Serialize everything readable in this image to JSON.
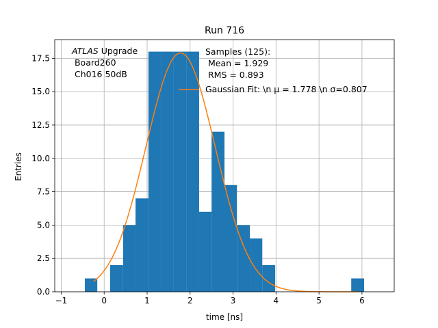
{
  "chart_data": {
    "type": "bar",
    "title": "Run 716",
    "xlabel": "time [ns]",
    "ylabel": "Entries",
    "xlim": [
      -1.15,
      6.75
    ],
    "ylim": [
      0,
      18.9
    ],
    "grid": true,
    "x_ticks": [
      -1,
      0,
      1,
      2,
      3,
      4,
      5,
      6
    ],
    "x_tick_labels": [
      "−1",
      "0",
      "1",
      "2",
      "3",
      "4",
      "5",
      "6"
    ],
    "y_ticks": [
      0,
      2.5,
      5,
      7.5,
      10,
      12.5,
      15,
      17.5
    ],
    "y_tick_labels": [
      "0.0",
      "2.5",
      "5.0",
      "7.5",
      "10.0",
      "12.5",
      "15.0",
      "17.5"
    ],
    "bins": [
      {
        "x0": -0.45,
        "x1": -0.16,
        "count": 1
      },
      {
        "x0": 0.14,
        "x1": 0.44,
        "count": 2
      },
      {
        "x0": 0.44,
        "x1": 0.73,
        "count": 5
      },
      {
        "x0": 0.73,
        "x1": 1.03,
        "count": 7
      },
      {
        "x0": 1.03,
        "x1": 1.32,
        "count": 18
      },
      {
        "x0": 1.32,
        "x1": 1.62,
        "count": 18
      },
      {
        "x0": 1.62,
        "x1": 1.91,
        "count": 18
      },
      {
        "x0": 1.91,
        "x1": 2.21,
        "count": 18
      },
      {
        "x0": 2.21,
        "x1": 2.5,
        "count": 6
      },
      {
        "x0": 2.5,
        "x1": 2.8,
        "count": 12
      },
      {
        "x0": 2.8,
        "x1": 3.09,
        "count": 8
      },
      {
        "x0": 3.09,
        "x1": 3.39,
        "count": 5
      },
      {
        "x0": 3.39,
        "x1": 3.68,
        "count": 4
      },
      {
        "x0": 3.68,
        "x1": 3.98,
        "count": 2
      },
      {
        "x0": 5.75,
        "x1": 6.05,
        "count": 1
      }
    ],
    "fit": {
      "amplitude": 17.9,
      "mu": 1.778,
      "sigma": 0.807,
      "x_range": [
        -0.25,
        5.9
      ]
    },
    "colors": {
      "bars": "#1f77b4",
      "fit": "#ff7f0e",
      "grid": "#b0b0b0"
    },
    "annotation": {
      "line1_italic": "ATLAS",
      "line1_rest": " Upgrade",
      "line2": " Board260",
      "line3": " Ch016 50dB"
    },
    "legend": {
      "placement": "upper-right",
      "samples_line1": "Samples (125):",
      "samples_line2": " Mean = 1.929",
      "samples_line3": " RMS = 0.893",
      "fit_label": "Gaussian Fit: \\n μ = 1.778 \\n σ=0.807"
    }
  }
}
